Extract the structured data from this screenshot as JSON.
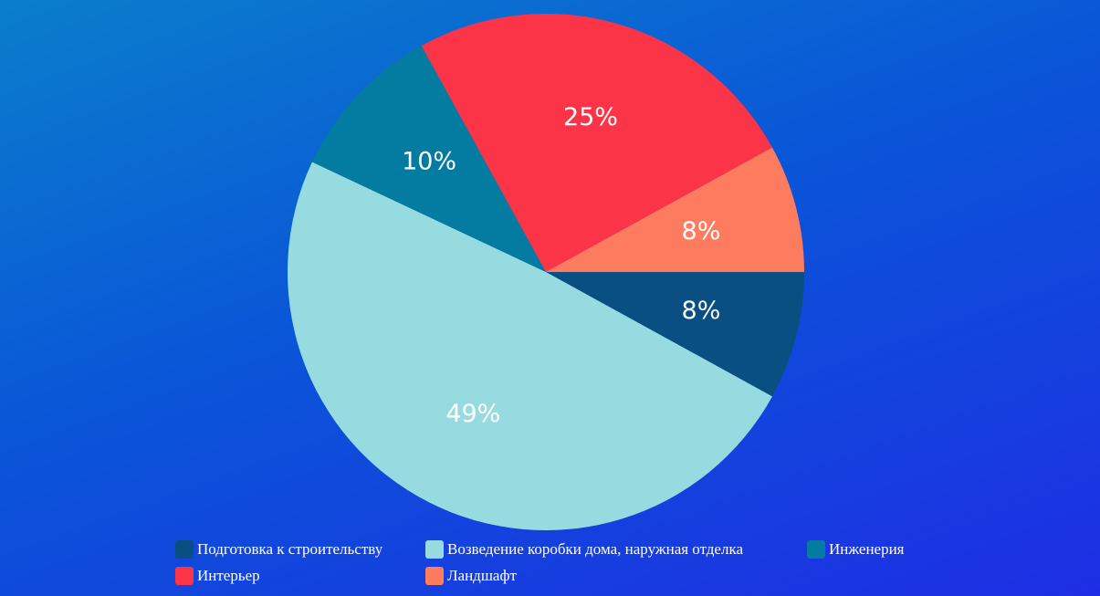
{
  "chart_data": {
    "type": "pie",
    "title": "",
    "legend_position": "bottom",
    "slices": [
      {
        "name": "Подготовка к строительству",
        "value": 8,
        "label": "8%",
        "color": "#0a4f82"
      },
      {
        "name": "Возведение коробки дома, наружная отделка",
        "value": 49,
        "label": "49%",
        "color": "#96dbe0"
      },
      {
        "name": "Инженерия",
        "value": 10,
        "label": "10%",
        "color": "#047ba0"
      },
      {
        "name": "Интерьер",
        "value": 25,
        "label": "25%",
        "color": "#fc3448"
      },
      {
        "name": "Ландшафт",
        "value": 8,
        "label": "8%",
        "color": "#fd7c60"
      }
    ]
  }
}
